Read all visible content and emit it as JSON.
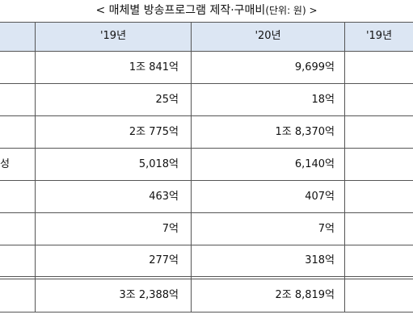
{
  "title": {
    "main": "< 매체별 방송프로그램 제작·구매비",
    "unit": "(단위: 원) >"
  },
  "table": {
    "columns": [
      "'19년",
      "'20년",
      "'19년"
    ],
    "rows": [
      {
        "label": "",
        "v19": "1조 841억",
        "v20": "9,699억"
      },
      {
        "label": "",
        "v19": "25억",
        "v20": "18억"
      },
      {
        "label": "",
        "v19": "2조 775억",
        "v20": "1조 8,370억"
      },
      {
        "label": "성",
        "v19": "5,018억",
        "v20": "6,140억"
      },
      {
        "label": "",
        "v19": "463억",
        "v20": "407억"
      },
      {
        "label": "",
        "v19": "7억",
        "v20": "7억"
      },
      {
        "label": "",
        "v19": "277억",
        "v20": "318억"
      }
    ],
    "total": {
      "v19": "3조 2,388억",
      "v20": "2조 8,819억"
    }
  }
}
